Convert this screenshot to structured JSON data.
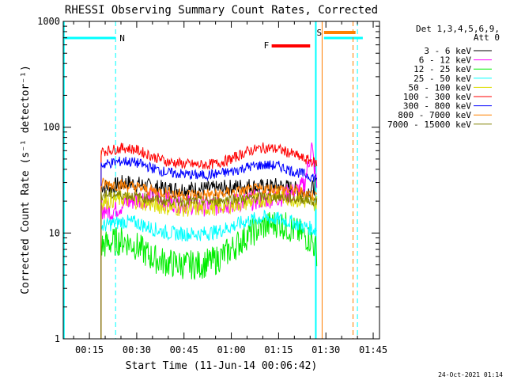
{
  "chart_data": {
    "type": "line",
    "title": "RHESSI Observing Summary Count Rates, Corrected",
    "xlabel": "Start Time (11-Jun-14 00:06:42)",
    "ylabel": "Corrected Count Rate (s⁻¹ detector⁻¹)",
    "yscale": "log",
    "ylim": [
      1,
      1000
    ],
    "xlim_minutes": [
      6.7,
      107.0
    ],
    "x_ticks": [
      {
        "label": "00:15",
        "minutes": 15
      },
      {
        "label": "00:30",
        "minutes": 30
      },
      {
        "label": "00:45",
        "minutes": 45
      },
      {
        "label": "01:00",
        "minutes": 60
      },
      {
        "label": "01:15",
        "minutes": 75
      },
      {
        "label": "01:30",
        "minutes": 90
      },
      {
        "label": "01:45",
        "minutes": 105
      }
    ],
    "y_ticks": [
      {
        "label": "1",
        "value": 1
      },
      {
        "label": "10",
        "value": 10
      },
      {
        "label": "100",
        "value": 100
      },
      {
        "label": "1000",
        "value": 1000
      }
    ],
    "legend": {
      "placement": "right",
      "header_line1": "Det 1,3,4,5,6,9,",
      "header_line2": "Att 0",
      "entries": [
        {
          "label": "3 - 6 keV",
          "color": "#000000"
        },
        {
          "label": "6 - 12 keV",
          "color": "#ff00ff"
        },
        {
          "label": "12 - 25 keV",
          "color": "#00ee00"
        },
        {
          "label": "25 - 50 keV",
          "color": "#00ffff"
        },
        {
          "label": "50 - 100 keV",
          "color": "#dddd00"
        },
        {
          "label": "100 - 300 keV",
          "color": "#ff0000"
        },
        {
          "label": "300 - 800 keV",
          "color": "#0000ff"
        },
        {
          "label": "800 - 7000 keV",
          "color": "#ff8000"
        },
        {
          "label": "7000 - 15000 keV",
          "color": "#808000"
        }
      ]
    },
    "x": [
      18.7,
      22,
      26,
      30,
      35,
      40,
      45,
      50,
      55,
      60,
      65,
      70,
      75,
      80,
      83,
      85.5,
      87.3
    ],
    "series": [
      {
        "name": "3 - 6 keV",
        "color": "#000000",
        "values": [
          28,
          27,
          30,
          29,
          27,
          26,
          26,
          26,
          26,
          27,
          28,
          27,
          28,
          26,
          24,
          26,
          29
        ]
      },
      {
        "name": "6 - 12 keV",
        "color": "#ff00ff",
        "values": [
          17,
          16,
          19,
          21,
          22,
          20,
          19,
          18,
          18,
          19,
          20,
          21,
          22,
          24,
          28,
          65,
          25
        ]
      },
      {
        "name": "12 - 25 keV",
        "color": "#00ee00",
        "values": [
          7.5,
          8.2,
          8.5,
          7.5,
          5.8,
          5.2,
          5.0,
          5.0,
          5.5,
          7.0,
          9.5,
          11.5,
          12.5,
          10.5,
          9.5,
          8.5,
          6.5
        ]
      },
      {
        "name": "25 - 50 keV",
        "color": "#00ffff",
        "values": [
          11.5,
          12.2,
          12.8,
          12.5,
          11,
          10,
          9.8,
          9.8,
          10.2,
          11.5,
          13,
          14,
          13.5,
          12.5,
          11.5,
          11,
          10.5
        ]
      },
      {
        "name": "50 - 100 keV",
        "color": "#dddd00",
        "values": [
          19.5,
          20.5,
          21,
          20,
          18.5,
          17.5,
          17,
          17,
          17.5,
          18.5,
          19.5,
          21,
          22.5,
          21,
          20,
          19.5,
          19
        ]
      },
      {
        "name": "100 - 300 keV",
        "color": "#ff0000",
        "values": [
          59,
          61,
          64,
          61,
          53,
          47,
          45,
          44,
          45,
          50,
          59,
          64,
          62,
          55,
          50,
          48,
          45
        ]
      },
      {
        "name": "300 - 800 keV",
        "color": "#0000ff",
        "values": [
          44,
          46,
          48,
          46,
          41,
          37,
          36,
          35,
          36,
          38,
          42,
          44,
          43,
          38,
          36,
          34,
          33
        ]
      },
      {
        "name": "800 - 7000 keV",
        "color": "#ff8000",
        "values": [
          29,
          29,
          28,
          27,
          25,
          24,
          23,
          23,
          23,
          24,
          25,
          26,
          26,
          25,
          24,
          23,
          22
        ]
      },
      {
        "name": "7000 - 15000 keV",
        "color": "#808000",
        "values": [
          23,
          23,
          23,
          22,
          21,
          20,
          20,
          20,
          20,
          21,
          21,
          22,
          22,
          21,
          21,
          20,
          20
        ]
      }
    ],
    "annotations": [
      {
        "label": "N",
        "color": "#00ffff"
      },
      {
        "label": "F",
        "color": "#ff0000"
      },
      {
        "label": "S",
        "color": "#ff8000"
      }
    ],
    "footer_timestamp": "24-Oct-2021 01:14"
  }
}
